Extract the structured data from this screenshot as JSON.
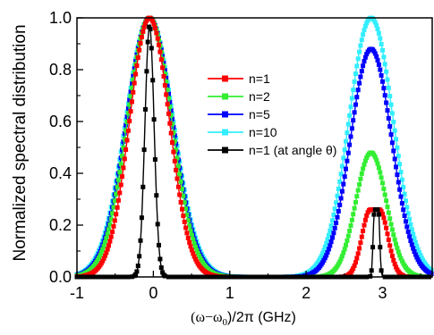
{
  "chart_data": {
    "type": "line",
    "title": "",
    "ylabel": "Normalized spectral distribution",
    "xlabel": {
      "prefix": "(ω−ω",
      "subscript": "0",
      "suffix": ")/2π (GHz)"
    },
    "xlim": [
      -1,
      3.65
    ],
    "ylim": [
      0,
      1.0
    ],
    "x_ticks": [
      "-1",
      "0",
      "1",
      "2",
      "3"
    ],
    "x_tick_values": [
      -1,
      0,
      1,
      2,
      3
    ],
    "y_ticks": [
      "0.0",
      "0.2",
      "0.4",
      "0.6",
      "0.8",
      "1.0"
    ],
    "y_tick_values": [
      0,
      0.2,
      0.4,
      0.6,
      0.8,
      1.0
    ],
    "grid": false,
    "legend_position": "center",
    "series": [
      {
        "name": "n=1",
        "color": "#ff0000",
        "peaks": [
          {
            "center": -0.05,
            "height": 1.0,
            "sigma": 0.26
          },
          {
            "center": 2.9,
            "height": 0.26,
            "sigma": 0.11,
            "flat_top": 0.12
          }
        ]
      },
      {
        "name": "n=2",
        "color": "#33ee33",
        "peaks": [
          {
            "center": -0.05,
            "height": 1.0,
            "sigma": 0.29
          },
          {
            "center": 2.85,
            "height": 0.48,
            "sigma": 0.2
          }
        ]
      },
      {
        "name": "n=5",
        "color": "#0000ff",
        "peaks": [
          {
            "center": -0.05,
            "height": 1.0,
            "sigma": 0.3
          },
          {
            "center": 2.85,
            "height": 0.88,
            "sigma": 0.27
          }
        ]
      },
      {
        "name": "n=10",
        "color": "#33eeff",
        "peaks": [
          {
            "center": -0.05,
            "height": 1.0,
            "sigma": 0.31
          },
          {
            "center": 2.85,
            "height": 1.0,
            "sigma": 0.29
          }
        ]
      },
      {
        "name": "n=1 (at angle θ)",
        "color": "#000000",
        "peaks": [
          {
            "center": -0.05,
            "height": 0.97,
            "sigma": 0.06
          },
          {
            "center": 2.92,
            "height": 0.26,
            "sigma": 0.018,
            "flat_top": 0.05
          }
        ]
      }
    ]
  }
}
